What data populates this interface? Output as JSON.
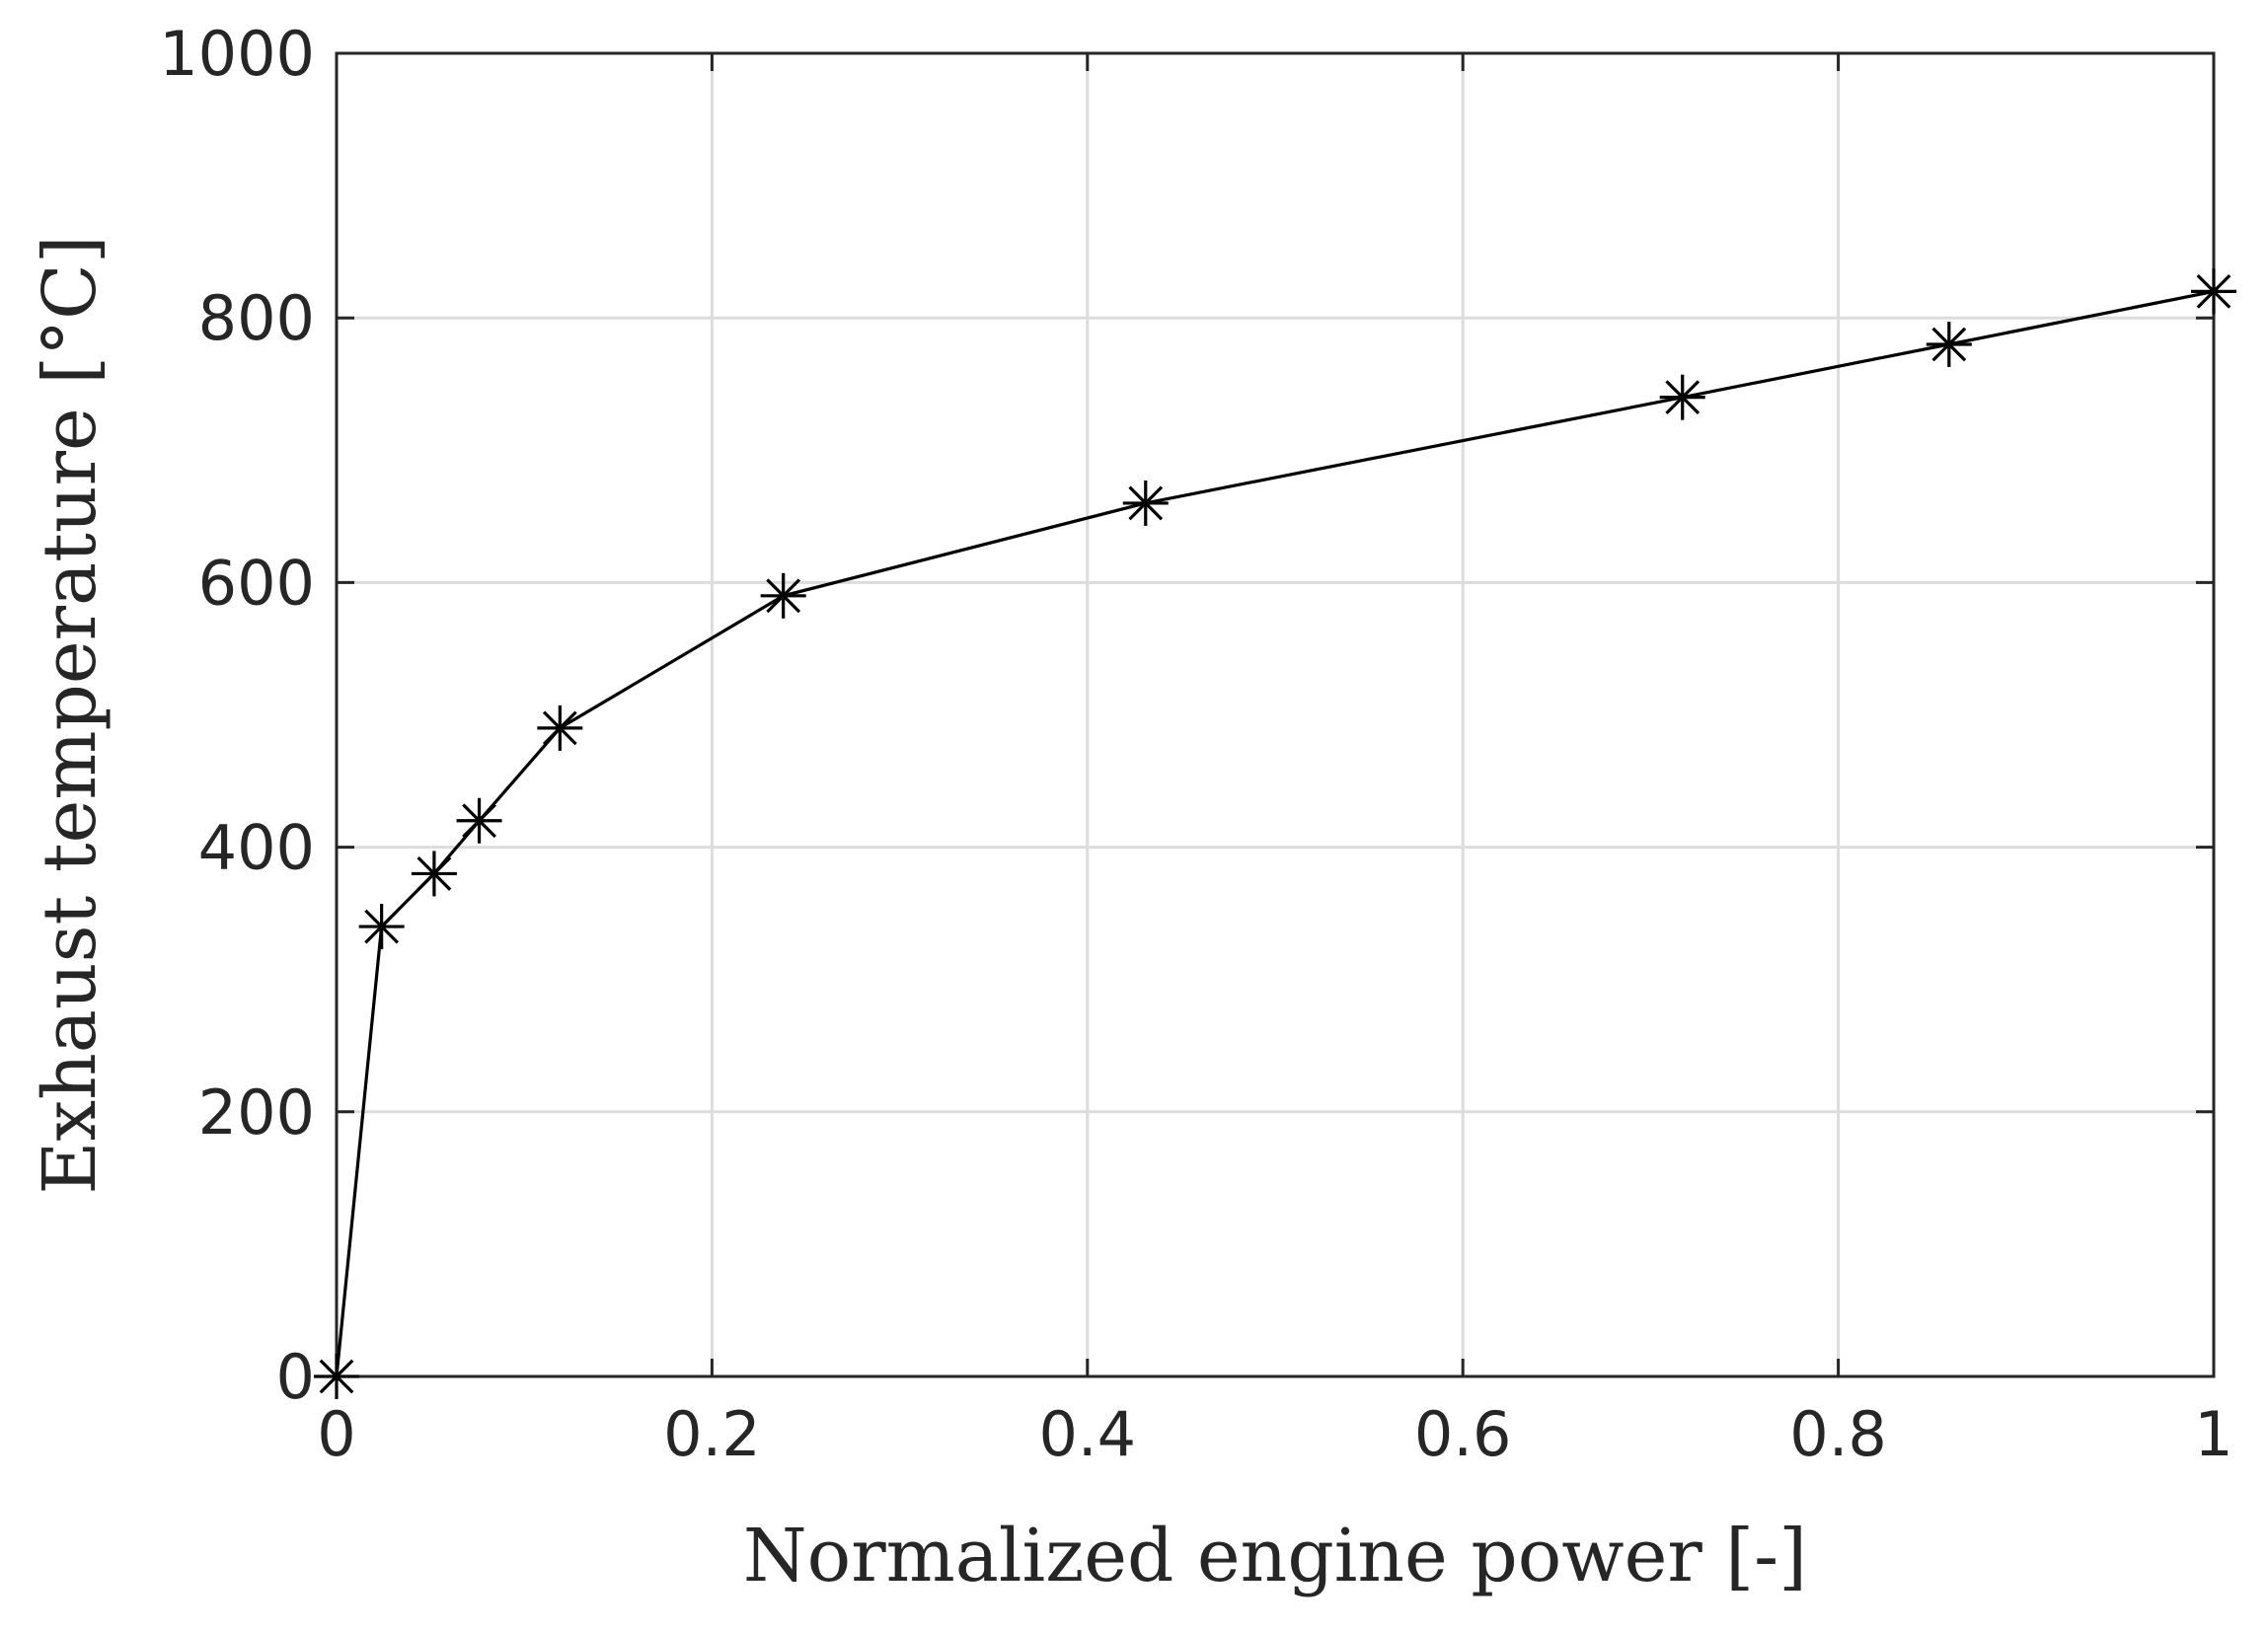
{
  "chart_data": {
    "type": "line",
    "title": "",
    "xlabel": "Normalized engine power [-]",
    "ylabel": "Exhaust temperature [°C]",
    "xlim": [
      0,
      1
    ],
    "ylim": [
      0,
      1000
    ],
    "xticks": [
      0,
      0.2,
      0.4,
      0.6,
      0.8,
      1
    ],
    "xtick_labels": [
      "0",
      "0.2",
      "0.4",
      "0.6",
      "0.8",
      "1"
    ],
    "yticks": [
      0,
      200,
      400,
      600,
      800,
      1000
    ],
    "ytick_labels": [
      "0",
      "200",
      "400",
      "600",
      "800",
      "1000"
    ],
    "grid": true,
    "legend": "none",
    "series": [
      {
        "marker": "asterisk",
        "color": "#000000",
        "x": [
          0,
          0.024,
          0.052,
          0.076,
          0.119,
          0.238,
          0.431,
          0.717,
          0.859,
          1.0
        ],
        "y": [
          0,
          340,
          380,
          420,
          490,
          590,
          660,
          740,
          780,
          820
        ]
      }
    ]
  }
}
